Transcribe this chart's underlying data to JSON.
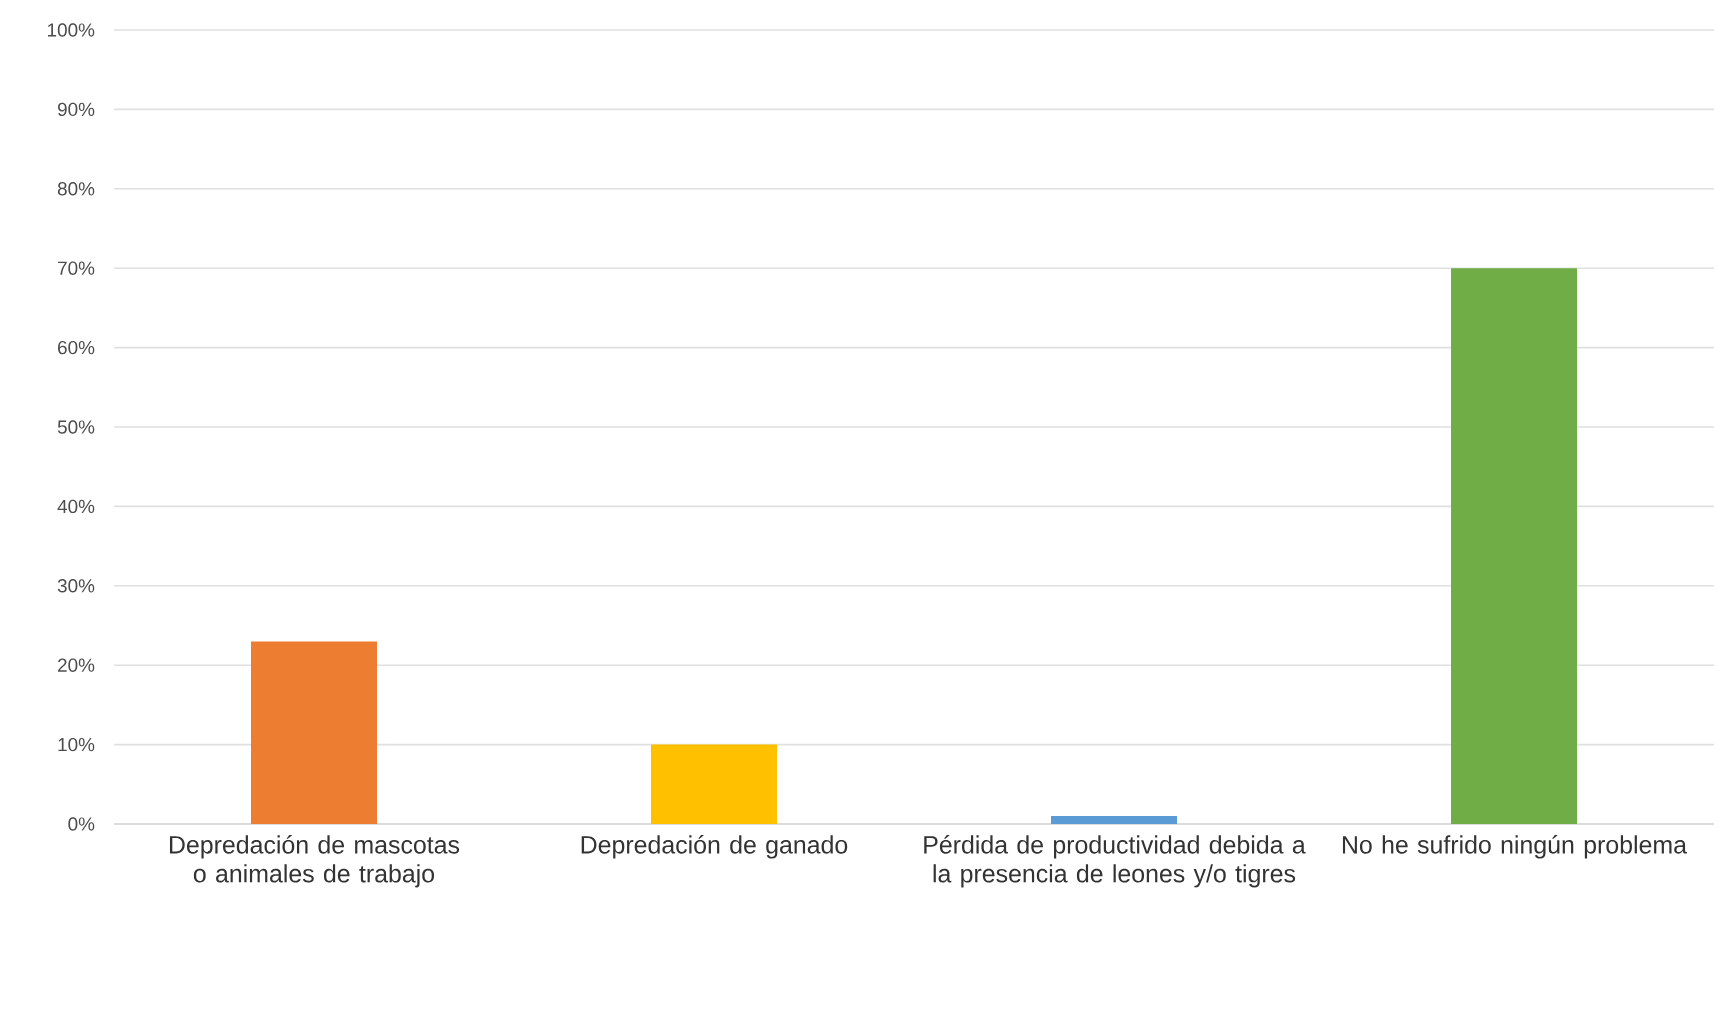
{
  "chart_data": {
    "type": "bar",
    "categories": [
      "Depredación de mascotas o animales de trabajo",
      "Depredación de ganado",
      "Pérdida de productividad debida a la presencia de leones y/o tigres",
      "No he sufrido ningún problema"
    ],
    "values": [
      23,
      10,
      1,
      70
    ],
    "colors": [
      "#ed7d31",
      "#ffc000",
      "#5b9bd5",
      "#70ad47"
    ],
    "ylim": [
      0,
      100
    ],
    "yticks": [
      {
        "value": 0,
        "label": "0%"
      },
      {
        "value": 10,
        "label": "10%"
      },
      {
        "value": 20,
        "label": "20%"
      },
      {
        "value": 30,
        "label": "30%"
      },
      {
        "value": 40,
        "label": "40%"
      },
      {
        "value": 50,
        "label": "50%"
      },
      {
        "value": 60,
        "label": "60%"
      },
      {
        "value": 70,
        "label": "70%"
      },
      {
        "value": 80,
        "label": "80%"
      },
      {
        "value": 90,
        "label": "90%"
      },
      {
        "value": 100,
        "label": "100%"
      }
    ],
    "grid": "y"
  }
}
